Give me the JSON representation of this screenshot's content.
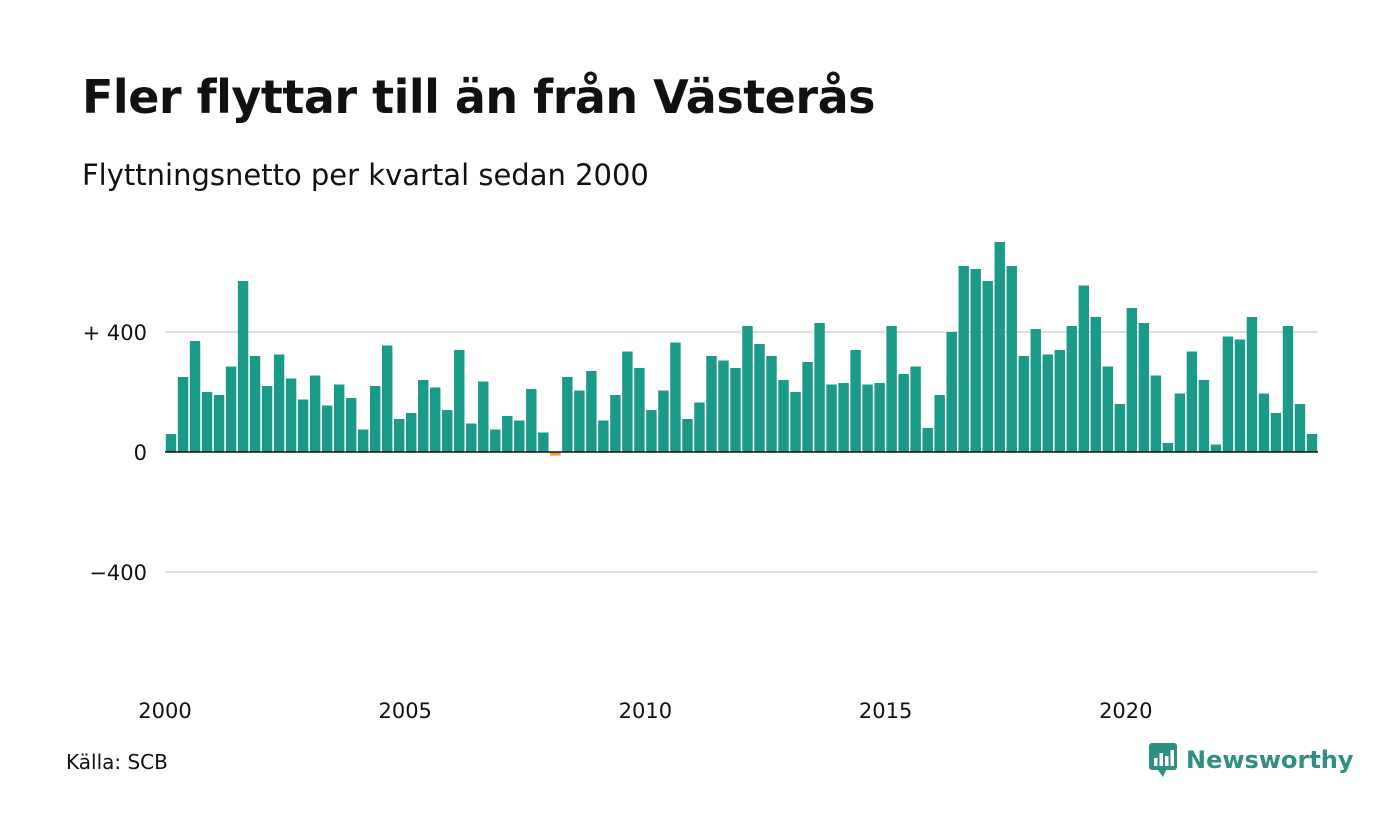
{
  "header": {
    "title": "Fler flyttar till än från Västerås",
    "subtitle": "Flyttningsnetto per kvartal sedan 2000"
  },
  "footer": {
    "source": "Källa: SCB",
    "brand": "Newsworthy",
    "brand_icon": "newsworthy-logo-icon"
  },
  "colors": {
    "positive": "#1a9b8a",
    "negative": "#e8a317",
    "grid": "#e0e0e0",
    "baseline": "#111111",
    "brand": "#2f8f83"
  },
  "chart_data": {
    "type": "bar",
    "start_year": 2000,
    "period": "quarter",
    "ylim": [
      -800,
      700
    ],
    "yticks": [
      {
        "value": 400,
        "label": "+ 400"
      },
      {
        "value": 0,
        "label": "0"
      },
      {
        "value": -400,
        "label": "−400"
      }
    ],
    "xticks": [
      {
        "year": 2000,
        "label": "2000"
      },
      {
        "year": 2005,
        "label": "2005"
      },
      {
        "year": 2010,
        "label": "2010"
      },
      {
        "year": 2015,
        "label": "2015"
      },
      {
        "year": 2020,
        "label": "2020"
      }
    ],
    "grid": true,
    "values": [
      60,
      250,
      370,
      200,
      190,
      285,
      570,
      320,
      220,
      325,
      245,
      175,
      255,
      155,
      225,
      180,
      75,
      220,
      355,
      110,
      130,
      240,
      215,
      140,
      340,
      95,
      235,
      75,
      120,
      105,
      210,
      65,
      -12,
      250,
      205,
      270,
      105,
      190,
      335,
      280,
      140,
      205,
      365,
      110,
      165,
      320,
      305,
      280,
      420,
      360,
      320,
      240,
      200,
      300,
      430,
      225,
      230,
      340,
      225,
      230,
      420,
      260,
      285,
      80,
      190,
      400,
      620,
      610,
      570,
      700,
      620,
      320,
      410,
      325,
      340,
      420,
      555,
      450,
      285,
      160,
      480,
      430,
      255,
      30,
      195,
      335,
      240,
      25,
      385,
      375,
      450,
      195,
      130,
      420,
      160,
      60
    ]
  }
}
